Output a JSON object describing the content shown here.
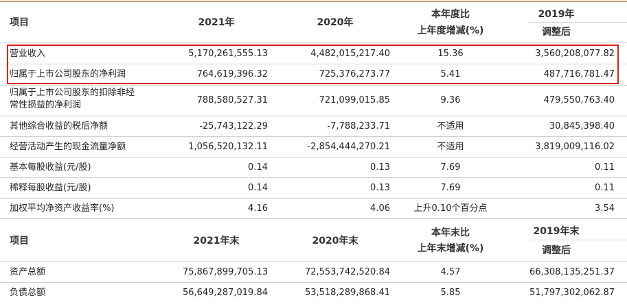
{
  "header1": {
    "col0": "项目",
    "col1": "2021年",
    "col2": "2020年",
    "col3_line1": "本年度比",
    "col3_line2": "上年度增减(%)",
    "col4_line1": "2019年",
    "col4_line2": "调整后"
  },
  "rows1": [
    {
      "label": "营业收入",
      "v2021": "5,170,261,555.13",
      "v2020": "4,482,015,217.40",
      "change": "15.36",
      "v2019": "3,560,208,077.82"
    },
    {
      "label": "归属于上市公司股东的净利润",
      "v2021": "764,619,396.32",
      "v2020": "725,376,273.77",
      "change": "5.41",
      "v2019": "487,716,781.47"
    },
    {
      "label_line1": "归属于上市公司股东的扣除非经",
      "label_line2": "常性损益的净利润",
      "v2021": "788,580,527.31",
      "v2020": "721,099,015.85",
      "change": "9.36",
      "v2019": "479,550,763.40"
    },
    {
      "label": "其他综合收益的税后净额",
      "v2021": "-25,743,122.29",
      "v2020": "-7,788,233.71",
      "change": "不适用",
      "v2019": "30,845,398.40"
    },
    {
      "label": "经营活动产生的现金流量净额",
      "v2021": "1,056,520,132.11",
      "v2020": "-2,854,444,270.21",
      "change": "不适用",
      "v2019": "3,819,009,116.02"
    },
    {
      "label": "基本每股收益(元/股)",
      "v2021": "0.14",
      "v2020": "0.13",
      "change": "7.69",
      "v2019": "0.11"
    },
    {
      "label": "稀释每股收益(元/股)",
      "v2021": "0.14",
      "v2020": "0.13",
      "change": "7.69",
      "v2019": "0.11"
    },
    {
      "label": "加权平均净资产收益率(%)",
      "v2021": "4.16",
      "v2020": "4.06",
      "change": "上升0.10个百分点",
      "v2019": "3.54"
    }
  ],
  "header2": {
    "col0": "项目",
    "col1": "2021年末",
    "col2": "2020年末",
    "col3_line1": "本年末比",
    "col3_line2": "上年末增减(%)",
    "col4_line1": "2019年末",
    "col4_line2": "调整后"
  },
  "rows2": [
    {
      "label": "资产总额",
      "v2021": "75,867,899,705.13",
      "v2020": "72,553,742,520.84",
      "change": "4.57",
      "v2019": "66,308,135,251.37"
    },
    {
      "label": "负债总额",
      "v2021": "56,649,287,019.84",
      "v2020": "53,518,289,868.41",
      "change": "5.85",
      "v2019": "51,797,302,062.87"
    }
  ],
  "highlight_color": "#e02020"
}
